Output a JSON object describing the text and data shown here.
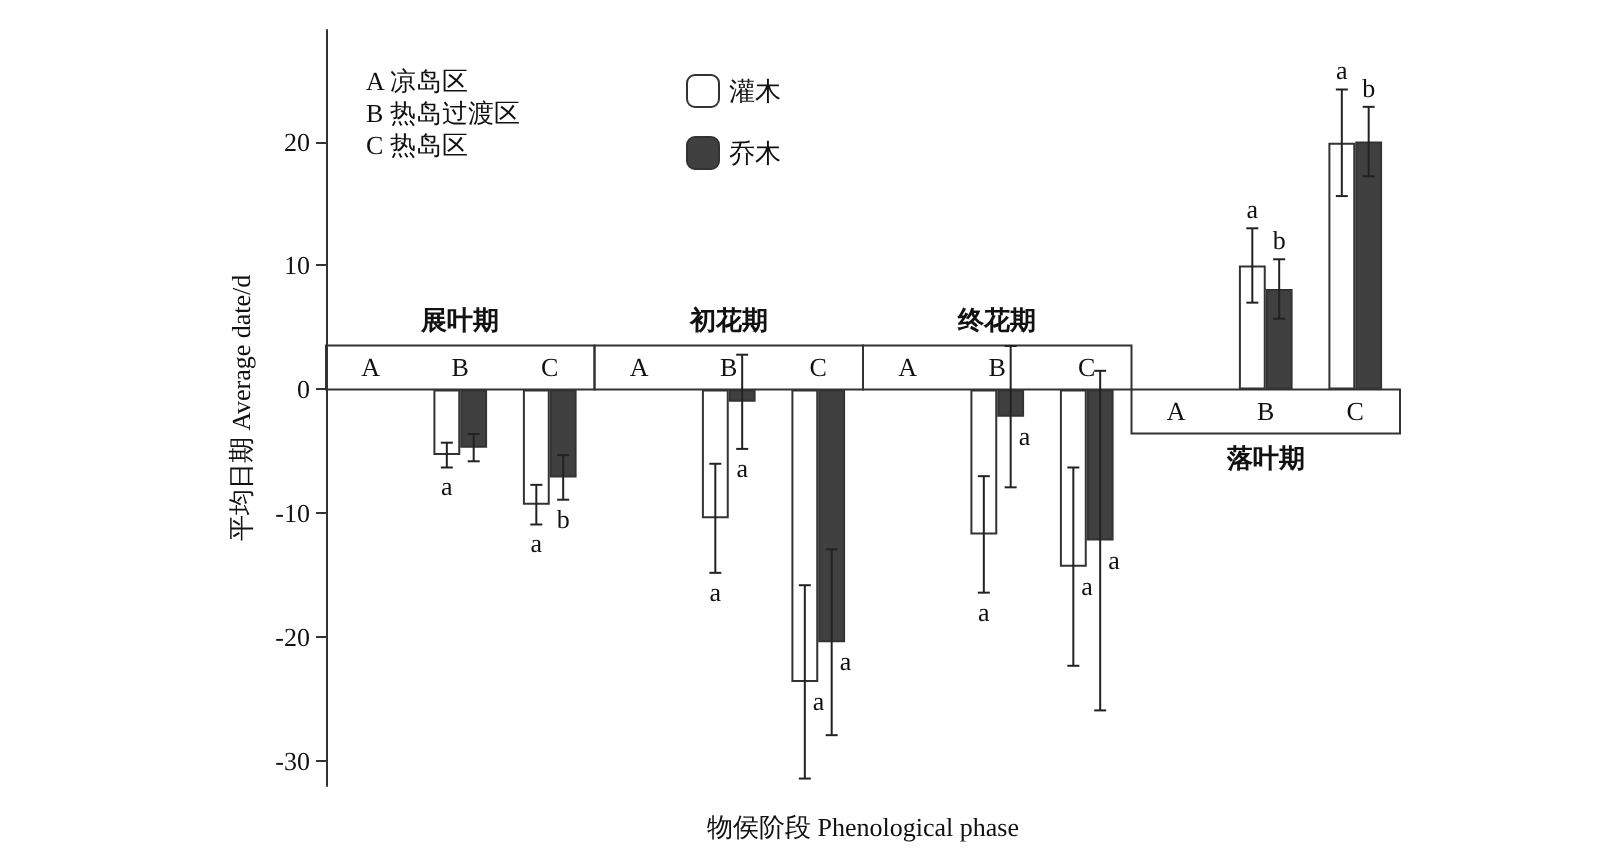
{
  "chart_data": {
    "type": "bar",
    "xlabel": "物侯阶段 Phenological phase",
    "ylabel": "平均日期 Average date/d",
    "categories": [
      "A",
      "B",
      "C",
      "A",
      "B",
      "C",
      "A",
      "B",
      "C",
      "A",
      "B",
      "C"
    ],
    "series": [
      {
        "name": "灌木",
        "color": "#ffffff",
        "values": [
          null,
          -5.3,
          -9.3,
          null,
          -10.4,
          -23.6,
          null,
          -11.7,
          -14.3,
          null,
          10.0,
          19.9
        ],
        "errors": [
          null,
          1.0,
          1.6,
          null,
          4.4,
          7.8,
          null,
          4.7,
          8.0,
          null,
          3.0,
          4.3
        ],
        "value_labels": [
          null,
          "a",
          "a",
          null,
          "a",
          "a",
          null,
          "a",
          "a",
          null,
          "a",
          "a"
        ]
      },
      {
        "name": "乔木",
        "color": "#404040",
        "values": [
          null,
          -4.7,
          -7.1,
          null,
          -1.0,
          -20.4,
          null,
          -2.2,
          -12.2,
          null,
          8.1,
          20.0
        ],
        "errors": [
          null,
          1.1,
          1.8,
          null,
          3.8,
          7.5,
          null,
          5.7,
          13.7,
          null,
          2.4,
          2.8
        ],
        "value_labels": [
          null,
          null,
          "b",
          null,
          "a",
          "a",
          null,
          "a",
          "a",
          null,
          "b",
          "b"
        ]
      }
    ],
    "annotations": [
      "展叶期",
      "初花期",
      "终花期",
      "落叶期",
      "A 凉岛区",
      "B 热岛过渡区",
      "C 热岛区"
    ],
    "ylim": [
      -32,
      29
    ],
    "yticks": [
      -30,
      -20,
      -10,
      0,
      10,
      20
    ],
    "legend": "top left",
    "grid": false
  }
}
